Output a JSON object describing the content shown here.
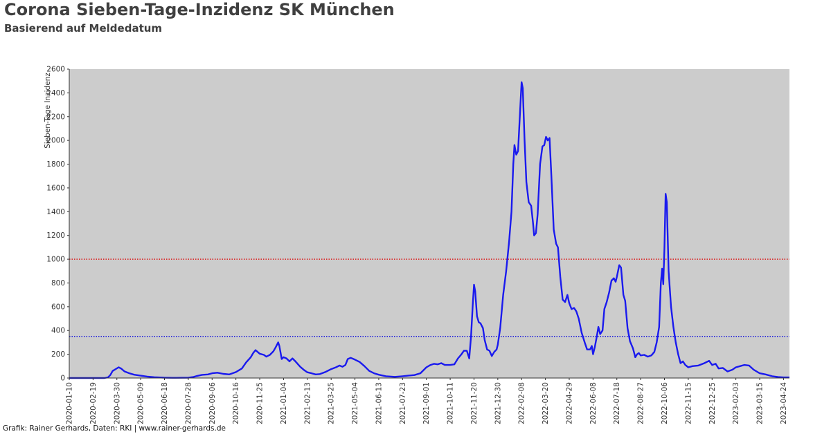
{
  "title": "Corona Sieben-Tage-Inzidenz SK München",
  "subtitle": "Basierend auf Meldedatum",
  "footer": "Grafik: Rainer Gerhards, Daten: RKI | www.rainer-gerhards.de",
  "chart_data": {
    "type": "line",
    "title": "Corona Sieben-Tage-Inzidenz SK München",
    "subtitle": "Basierend auf Meldedatum",
    "xlabel": "",
    "ylabel": "Sieben-Tage Inzidenz",
    "ylim": [
      0,
      2600
    ],
    "xlim": [
      "2020-01-10",
      "2023-05-04"
    ],
    "yticks": [
      0,
      200,
      400,
      600,
      800,
      1000,
      1200,
      1400,
      1600,
      1800,
      2000,
      2200,
      2400,
      2600
    ],
    "xticks": [
      "2020-01-10",
      "2020-02-19",
      "2020-03-30",
      "2020-05-09",
      "2020-06-18",
      "2020-07-28",
      "2020-09-06",
      "2020-10-16",
      "2020-11-25",
      "2021-01-04",
      "2021-02-13",
      "2021-03-25",
      "2021-05-04",
      "2021-06-13",
      "2021-07-23",
      "2021-09-01",
      "2021-10-11",
      "2021-11-20",
      "2021-12-30",
      "2022-02-08",
      "2022-03-20",
      "2022-04-29",
      "2022-06-08",
      "2022-07-18",
      "2022-08-27",
      "2022-10-06",
      "2022-11-15",
      "2022-12-25",
      "2023-02-03",
      "2023-03-15",
      "2023-04-24"
    ],
    "grid": false,
    "background": "#cccccc",
    "reference_lines": [
      {
        "value": 1000,
        "color": "#dd0000",
        "style": "dotted"
      },
      {
        "value": 350,
        "color": "#0000dd",
        "style": "dotted"
      }
    ],
    "series": [
      {
        "color": "#1a1aee",
        "points": [
          [
            "2020-01-10",
            0
          ],
          [
            "2020-03-09",
            0
          ],
          [
            "2020-03-15",
            5
          ],
          [
            "2020-03-19",
            25
          ],
          [
            "2020-03-23",
            60
          ],
          [
            "2020-03-28",
            75
          ],
          [
            "2020-04-02",
            90
          ],
          [
            "2020-04-06",
            80
          ],
          [
            "2020-04-12",
            55
          ],
          [
            "2020-04-20",
            40
          ],
          [
            "2020-04-28",
            28
          ],
          [
            "2020-05-09",
            20
          ],
          [
            "2020-05-20",
            12
          ],
          [
            "2020-06-01",
            7
          ],
          [
            "2020-06-18",
            3
          ],
          [
            "2020-07-01",
            2
          ],
          [
            "2020-07-28",
            3
          ],
          [
            "2020-08-05",
            8
          ],
          [
            "2020-08-12",
            18
          ],
          [
            "2020-08-20",
            27
          ],
          [
            "2020-08-30",
            30
          ],
          [
            "2020-09-06",
            40
          ],
          [
            "2020-09-15",
            45
          ],
          [
            "2020-09-25",
            35
          ],
          [
            "2020-10-05",
            30
          ],
          [
            "2020-10-16",
            50
          ],
          [
            "2020-10-26",
            80
          ],
          [
            "2020-11-02",
            130
          ],
          [
            "2020-11-10",
            175
          ],
          [
            "2020-11-14",
            210
          ],
          [
            "2020-11-18",
            235
          ],
          [
            "2020-11-25",
            205
          ],
          [
            "2020-12-02",
            195
          ],
          [
            "2020-12-06",
            180
          ],
          [
            "2020-12-12",
            195
          ],
          [
            "2020-12-18",
            225
          ],
          [
            "2020-12-22",
            260
          ],
          [
            "2020-12-26",
            300
          ],
          [
            "2020-12-28",
            270
          ],
          [
            "2021-01-01",
            160
          ],
          [
            "2021-01-04",
            175
          ],
          [
            "2021-01-09",
            165
          ],
          [
            "2021-01-14",
            140
          ],
          [
            "2021-01-19",
            165
          ],
          [
            "2021-01-24",
            140
          ],
          [
            "2021-02-01",
            95
          ],
          [
            "2021-02-08",
            65
          ],
          [
            "2021-02-13",
            48
          ],
          [
            "2021-02-20",
            40
          ],
          [
            "2021-02-27",
            30
          ],
          [
            "2021-03-06",
            33
          ],
          [
            "2021-03-15",
            50
          ],
          [
            "2021-03-25",
            75
          ],
          [
            "2021-04-02",
            90
          ],
          [
            "2021-04-08",
            105
          ],
          [
            "2021-04-13",
            95
          ],
          [
            "2021-04-18",
            110
          ],
          [
            "2021-04-22",
            160
          ],
          [
            "2021-04-27",
            170
          ],
          [
            "2021-05-04",
            155
          ],
          [
            "2021-05-12",
            135
          ],
          [
            "2021-05-20",
            100
          ],
          [
            "2021-05-28",
            60
          ],
          [
            "2021-06-05",
            40
          ],
          [
            "2021-06-13",
            28
          ],
          [
            "2021-06-25",
            15
          ],
          [
            "2021-07-10",
            10
          ],
          [
            "2021-07-23",
            15
          ],
          [
            "2021-08-01",
            20
          ],
          [
            "2021-08-12",
            25
          ],
          [
            "2021-08-22",
            40
          ],
          [
            "2021-09-01",
            90
          ],
          [
            "2021-09-08",
            110
          ],
          [
            "2021-09-14",
            120
          ],
          [
            "2021-09-20",
            115
          ],
          [
            "2021-09-26",
            125
          ],
          [
            "2021-10-02",
            110
          ],
          [
            "2021-10-11",
            110
          ],
          [
            "2021-10-18",
            115
          ],
          [
            "2021-10-24",
            165
          ],
          [
            "2021-10-30",
            200
          ],
          [
            "2021-11-03",
            230
          ],
          [
            "2021-11-08",
            230
          ],
          [
            "2021-11-12",
            165
          ],
          [
            "2021-11-15",
            350
          ],
          [
            "2021-11-18",
            620
          ],
          [
            "2021-11-20",
            785
          ],
          [
            "2021-11-22",
            730
          ],
          [
            "2021-11-25",
            520
          ],
          [
            "2021-11-28",
            470
          ],
          [
            "2021-12-01",
            460
          ],
          [
            "2021-12-05",
            420
          ],
          [
            "2021-12-08",
            320
          ],
          [
            "2021-12-12",
            240
          ],
          [
            "2021-12-16",
            230
          ],
          [
            "2021-12-20",
            185
          ],
          [
            "2021-12-24",
            220
          ],
          [
            "2021-12-28",
            240
          ],
          [
            "2021-12-30",
            280
          ],
          [
            "2022-01-03",
            420
          ],
          [
            "2022-01-08",
            700
          ],
          [
            "2022-01-13",
            900
          ],
          [
            "2022-01-18",
            1150
          ],
          [
            "2022-01-22",
            1400
          ],
          [
            "2022-01-25",
            1800
          ],
          [
            "2022-01-27",
            1960
          ],
          [
            "2022-01-30",
            1880
          ],
          [
            "2022-02-02",
            1910
          ],
          [
            "2022-02-06",
            2300
          ],
          [
            "2022-02-08",
            2490
          ],
          [
            "2022-02-10",
            2440
          ],
          [
            "2022-02-13",
            2000
          ],
          [
            "2022-02-16",
            1650
          ],
          [
            "2022-02-20",
            1480
          ],
          [
            "2022-02-24",
            1450
          ],
          [
            "2022-02-27",
            1310
          ],
          [
            "2022-03-01",
            1200
          ],
          [
            "2022-03-04",
            1220
          ],
          [
            "2022-03-07",
            1380
          ],
          [
            "2022-03-11",
            1800
          ],
          [
            "2022-03-15",
            1950
          ],
          [
            "2022-03-18",
            1960
          ],
          [
            "2022-03-21",
            2030
          ],
          [
            "2022-03-24",
            2000
          ],
          [
            "2022-03-27",
            2020
          ],
          [
            "2022-03-30",
            1700
          ],
          [
            "2022-04-03",
            1250
          ],
          [
            "2022-04-07",
            1130
          ],
          [
            "2022-04-10",
            1100
          ],
          [
            "2022-04-14",
            850
          ],
          [
            "2022-04-18",
            660
          ],
          [
            "2022-04-22",
            640
          ],
          [
            "2022-04-26",
            700
          ],
          [
            "2022-04-29",
            630
          ],
          [
            "2022-05-03",
            580
          ],
          [
            "2022-05-07",
            590
          ],
          [
            "2022-05-11",
            560
          ],
          [
            "2022-05-15",
            500
          ],
          [
            "2022-05-20",
            380
          ],
          [
            "2022-05-25",
            300
          ],
          [
            "2022-05-29",
            240
          ],
          [
            "2022-06-03",
            240
          ],
          [
            "2022-06-06",
            270
          ],
          [
            "2022-06-08",
            200
          ],
          [
            "2022-06-11",
            260
          ],
          [
            "2022-06-14",
            340
          ],
          [
            "2022-06-17",
            430
          ],
          [
            "2022-06-20",
            370
          ],
          [
            "2022-06-24",
            400
          ],
          [
            "2022-06-27",
            580
          ],
          [
            "2022-07-01",
            640
          ],
          [
            "2022-07-05",
            720
          ],
          [
            "2022-07-09",
            820
          ],
          [
            "2022-07-13",
            840
          ],
          [
            "2022-07-16",
            810
          ],
          [
            "2022-07-18",
            850
          ],
          [
            "2022-07-22",
            950
          ],
          [
            "2022-07-25",
            930
          ],
          [
            "2022-07-29",
            700
          ],
          [
            "2022-08-01",
            650
          ],
          [
            "2022-08-05",
            420
          ],
          [
            "2022-08-09",
            310
          ],
          [
            "2022-08-14",
            250
          ],
          [
            "2022-08-18",
            175
          ],
          [
            "2022-08-21",
            200
          ],
          [
            "2022-08-24",
            210
          ],
          [
            "2022-08-27",
            190
          ],
          [
            "2022-09-02",
            195
          ],
          [
            "2022-09-08",
            180
          ],
          [
            "2022-09-14",
            190
          ],
          [
            "2022-09-19",
            220
          ],
          [
            "2022-09-23",
            300
          ],
          [
            "2022-09-27",
            430
          ],
          [
            "2022-09-30",
            800
          ],
          [
            "2022-10-02",
            920
          ],
          [
            "2022-10-04",
            790
          ],
          [
            "2022-10-06",
            1100
          ],
          [
            "2022-10-08",
            1550
          ],
          [
            "2022-10-10",
            1480
          ],
          [
            "2022-10-13",
            900
          ],
          [
            "2022-10-17",
            600
          ],
          [
            "2022-10-21",
            430
          ],
          [
            "2022-10-25",
            300
          ],
          [
            "2022-10-29",
            200
          ],
          [
            "2022-11-02",
            125
          ],
          [
            "2022-11-06",
            140
          ],
          [
            "2022-11-10",
            110
          ],
          [
            "2022-11-15",
            90
          ],
          [
            "2022-11-22",
            100
          ],
          [
            "2022-12-02",
            105
          ],
          [
            "2022-12-12",
            125
          ],
          [
            "2022-12-20",
            145
          ],
          [
            "2022-12-25",
            110
          ],
          [
            "2022-12-31",
            120
          ],
          [
            "2023-01-05",
            80
          ],
          [
            "2023-01-12",
            85
          ],
          [
            "2023-01-20",
            55
          ],
          [
            "2023-01-28",
            70
          ],
          [
            "2023-02-03",
            90
          ],
          [
            "2023-02-10",
            100
          ],
          [
            "2023-02-17",
            110
          ],
          [
            "2023-02-25",
            105
          ],
          [
            "2023-03-05",
            70
          ],
          [
            "2023-03-15",
            40
          ],
          [
            "2023-03-25",
            30
          ],
          [
            "2023-04-05",
            15
          ],
          [
            "2023-04-15",
            8
          ],
          [
            "2023-04-24",
            5
          ],
          [
            "2023-05-04",
            5
          ]
        ]
      }
    ]
  }
}
